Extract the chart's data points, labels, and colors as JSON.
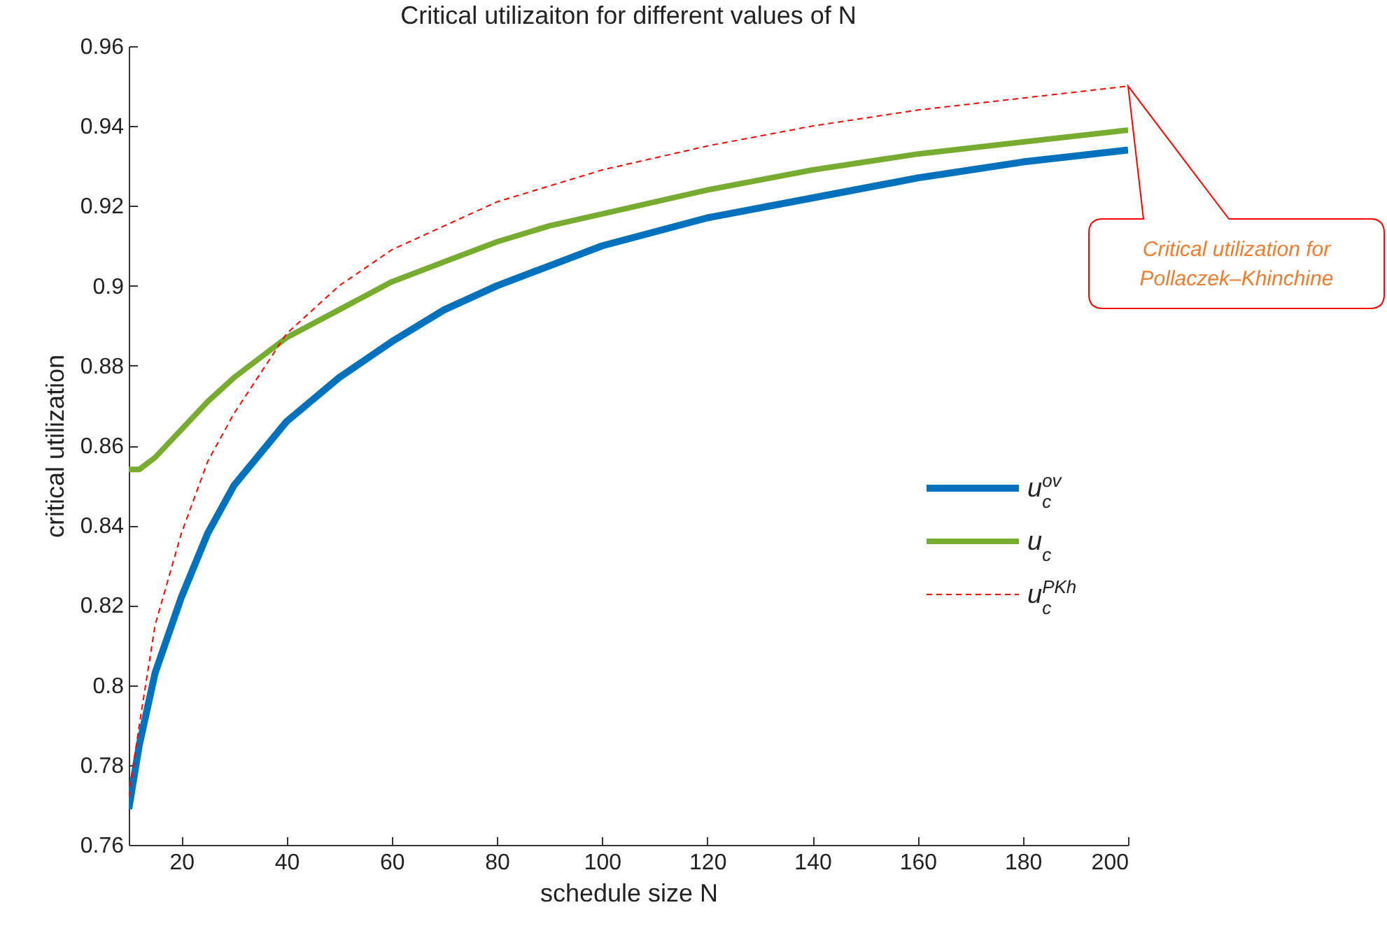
{
  "chart_data": {
    "type": "line",
    "title": "Critical utilizaiton for different values of N",
    "xlabel": "schedule size N",
    "ylabel": "critical utilization",
    "x": [
      10,
      12,
      15,
      20,
      25,
      30,
      40,
      50,
      60,
      70,
      80,
      90,
      100,
      120,
      140,
      160,
      180,
      200
    ],
    "series": [
      {
        "name": "u$_{c}$$^{ov}$",
        "color": "#0072bd",
        "values": [
          0.769,
          0.785,
          0.803,
          0.822,
          0.838,
          0.85,
          0.866,
          0.877,
          0.886,
          0.894,
          0.9,
          0.905,
          0.91,
          0.917,
          0.922,
          0.927,
          0.931,
          0.934
        ]
      },
      {
        "name": "u$_{c}$",
        "color": "#77ac30",
        "values": [
          0.854,
          0.854,
          0.857,
          0.864,
          0.871,
          0.877,
          0.887,
          0.894,
          0.901,
          0.906,
          0.911,
          0.915,
          0.918,
          0.924,
          0.929,
          0.933,
          0.936,
          0.939
        ]
      },
      {
        "name": "u$_{c}$$^{PKh}$",
        "color": "#ff0000",
        "line_style": "dashed",
        "values": [
          0.772,
          0.79,
          0.815,
          0.838,
          0.856,
          0.868,
          0.888,
          0.9,
          0.909,
          0.915,
          0.921,
          0.925,
          0.929,
          0.935,
          0.94,
          0.944,
          0.947,
          0.95
        ]
      }
    ],
    "xlim": [
      10,
      200
    ],
    "xticks": [
      20,
      40,
      60,
      80,
      100,
      120,
      140,
      160,
      180,
      200
    ],
    "ylim": [
      0.76,
      0.96
    ],
    "yticks": [
      0.76,
      0.78,
      0.8,
      0.82,
      0.84,
      0.86,
      0.88,
      0.9,
      0.92,
      0.94,
      0.96
    ],
    "legend": "right",
    "annotations": [
      "Critical utilization for Pollaczek–Khinchine"
    ]
  }
}
